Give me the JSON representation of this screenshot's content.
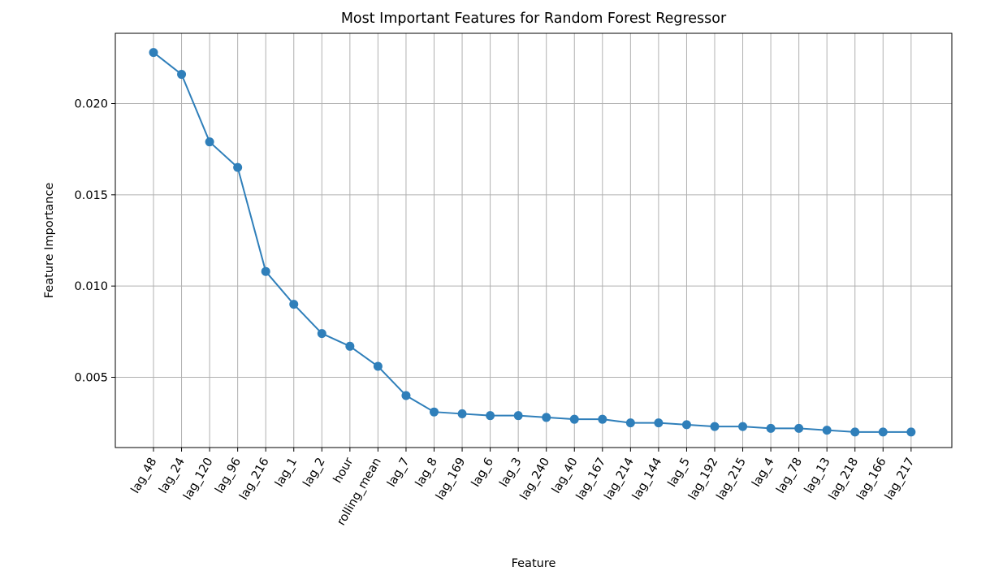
{
  "chart_data": {
    "type": "line",
    "title": "Most Important Features for Random Forest Regressor",
    "xlabel": "Feature",
    "ylabel": "Feature Importance",
    "categories": [
      "lag_48",
      "lag_24",
      "lag_120",
      "lag_96",
      "lag_216",
      "lag_1",
      "lag_2",
      "hour",
      "rolling_mean",
      "lag_7",
      "lag_8",
      "lag_169",
      "lag_6",
      "lag_3",
      "lag_240",
      "lag_40",
      "lag_167",
      "lag_214",
      "lag_144",
      "lag_5",
      "lag_192",
      "lag_215",
      "lag_4",
      "lag_78",
      "lag_13",
      "lag_218",
      "lag_166",
      "lag_217"
    ],
    "values": [
      0.0228,
      0.0216,
      0.0179,
      0.0165,
      0.0108,
      0.009,
      0.0074,
      0.0067,
      0.0056,
      0.004,
      0.0031,
      0.003,
      0.0029,
      0.0029,
      0.0028,
      0.0027,
      0.0027,
      0.0025,
      0.0025,
      0.0024,
      0.0023,
      0.0023,
      0.0022,
      0.0022,
      0.0021,
      0.002,
      0.002,
      0.002
    ],
    "yticks": [
      0.005,
      0.01,
      0.015,
      0.02
    ],
    "ytick_labels": [
      "0.005",
      "0.010",
      "0.015",
      "0.020"
    ],
    "ylim": [
      0.00115,
      0.02385
    ],
    "grid": true,
    "line_color": "#2f7fba",
    "grid_color": "#b0b0b0"
  }
}
